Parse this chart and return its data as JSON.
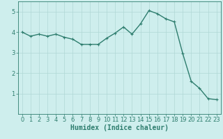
{
  "x": [
    0,
    1,
    2,
    3,
    4,
    5,
    6,
    7,
    8,
    9,
    10,
    11,
    12,
    13,
    14,
    15,
    16,
    17,
    18,
    19,
    20,
    21,
    22,
    23
  ],
  "y": [
    4.0,
    3.8,
    3.9,
    3.8,
    3.9,
    3.75,
    3.65,
    3.4,
    3.4,
    3.4,
    3.7,
    3.95,
    4.25,
    3.9,
    4.4,
    5.05,
    4.9,
    4.65,
    4.5,
    2.95,
    1.6,
    1.25,
    0.75,
    0.7
  ],
  "line_color": "#2e7d6e",
  "marker": "+",
  "marker_size": 3,
  "line_width": 1.0,
  "bg_color": "#ceeeed",
  "grid_color": "#b0d8d5",
  "xlabel": "Humidex (Indice chaleur)",
  "xlabel_fontsize": 7,
  "tick_fontsize": 6,
  "ylim": [
    0,
    5.5
  ],
  "xlim": [
    -0.5,
    23.5
  ],
  "yticks": [
    1,
    2,
    3,
    4,
    5
  ],
  "xticks": [
    0,
    1,
    2,
    3,
    4,
    5,
    6,
    7,
    8,
    9,
    10,
    11,
    12,
    13,
    14,
    15,
    16,
    17,
    18,
    19,
    20,
    21,
    22,
    23
  ]
}
